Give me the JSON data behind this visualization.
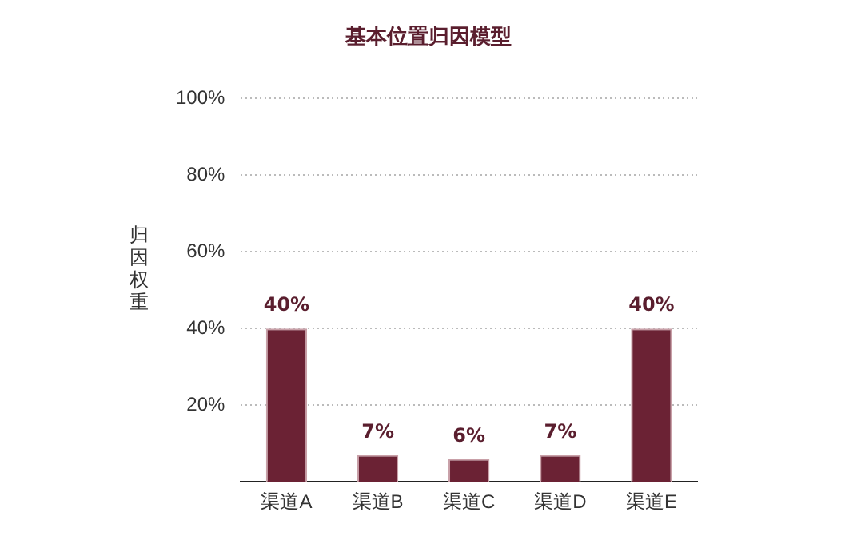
{
  "chart_data": {
    "type": "bar",
    "title": "基本位置归因模型",
    "ylabel": "归因权重",
    "categories": [
      "渠道A",
      "渠道B",
      "渠道C",
      "渠道D",
      "渠道E"
    ],
    "values": [
      40,
      7,
      6,
      7,
      40
    ],
    "value_labels": [
      "40%",
      "7%",
      "6%",
      "7%",
      "40%"
    ],
    "color": "#6b2234",
    "ylim": [
      0,
      100
    ],
    "yticks": [
      {
        "value": 20,
        "label": "20%"
      },
      {
        "value": 40,
        "label": "40%"
      },
      {
        "value": 60,
        "label": "60%"
      },
      {
        "value": 80,
        "label": "80%"
      },
      {
        "value": 100,
        "label": "100%"
      }
    ],
    "grid": "y"
  }
}
